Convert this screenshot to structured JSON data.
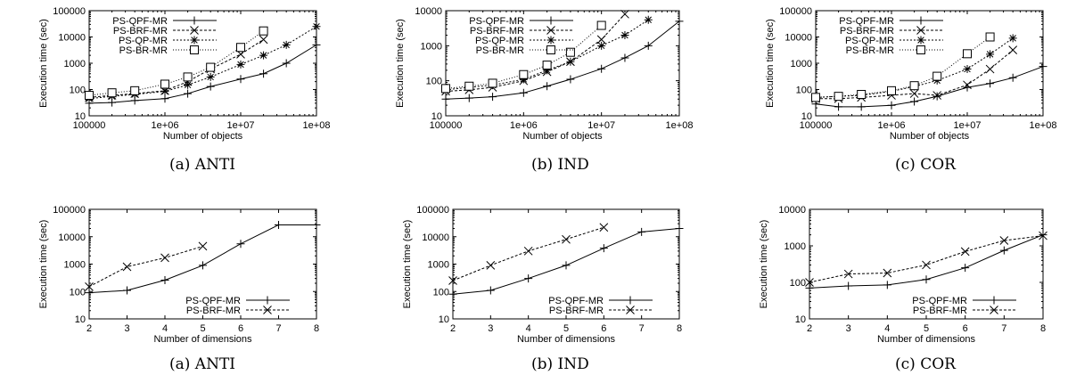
{
  "chart_data": [
    {
      "type": "line",
      "caption": "(a) ANTI",
      "xlabel": "Number of objects",
      "ylabel": "Execution time (sec)",
      "xscale": "log",
      "yscale": "log",
      "xlim": [
        100000,
        100000000
      ],
      "ylim": [
        10,
        100000
      ],
      "xticks": [
        100000,
        1000000,
        10000000,
        100000000
      ],
      "xtick_labels": [
        "100000",
        "1e+06",
        "1e+07",
        "1e+08"
      ],
      "yticks": [
        10,
        100,
        1000,
        10000,
        100000
      ],
      "ytick_labels": [
        "10",
        "100",
        "1000",
        "10000",
        "100000"
      ],
      "legend": "top-left",
      "series": [
        {
          "name": "PS-QPF-MR",
          "x": [
            100000,
            200000,
            400000,
            1000000,
            2000000,
            4000000,
            10000000,
            20000000,
            40000000,
            100000000
          ],
          "values": [
            30,
            32,
            38,
            45,
            70,
            130,
            250,
            400,
            1000,
            5000
          ]
        },
        {
          "name": "PS-BRF-MR",
          "x": [
            100000,
            200000,
            400000,
            1000000,
            2000000,
            4000000,
            10000000,
            20000000
          ],
          "values": [
            50,
            60,
            70,
            90,
            200,
            600,
            2200,
            8000
          ]
        },
        {
          "name": "PS-QP-MR",
          "x": [
            100000,
            200000,
            400000,
            1000000,
            2000000,
            4000000,
            10000000,
            20000000,
            40000000,
            100000000
          ],
          "values": [
            45,
            55,
            65,
            85,
            150,
            300,
            900,
            2000,
            5000,
            25000
          ]
        },
        {
          "name": "PS-BR-MR",
          "x": [
            100000,
            200000,
            400000,
            1000000,
            2000000,
            4000000,
            10000000,
            20000000
          ],
          "values": [
            60,
            75,
            90,
            160,
            300,
            700,
            4000,
            17000
          ]
        }
      ]
    },
    {
      "type": "line",
      "caption": "(b) IND",
      "xlabel": "Number of objects",
      "ylabel": "Execution time (sec)",
      "xscale": "log",
      "yscale": "log",
      "xlim": [
        100000,
        100000000
      ],
      "ylim": [
        10,
        10000
      ],
      "xticks": [
        100000,
        1000000,
        10000000,
        100000000
      ],
      "xtick_labels": [
        "100000",
        "1e+06",
        "1e+07",
        "1e+08"
      ],
      "yticks": [
        10,
        100,
        1000,
        10000
      ],
      "ytick_labels": [
        "10",
        "100",
        "1000",
        "10000"
      ],
      "legend": "top-left",
      "series": [
        {
          "name": "PS-QPF-MR",
          "x": [
            100000,
            200000,
            400000,
            1000000,
            2000000,
            4000000,
            10000000,
            20000000,
            40000000,
            100000000
          ],
          "values": [
            30,
            32,
            35,
            45,
            70,
            110,
            220,
            450,
            1000,
            5000
          ]
        },
        {
          "name": "PS-BRF-MR",
          "x": [
            100000,
            200000,
            400000,
            1000000,
            2000000,
            4000000,
            10000000,
            20000000
          ],
          "values": [
            50,
            55,
            65,
            100,
            180,
            350,
            1500,
            8000
          ]
        },
        {
          "name": "PS-QP-MR",
          "x": [
            100000,
            200000,
            400000,
            1000000,
            2000000,
            4000000,
            10000000,
            20000000,
            40000000
          ],
          "values": [
            55,
            65,
            75,
            110,
            200,
            350,
            1000,
            2000,
            5500
          ]
        },
        {
          "name": "PS-BR-MR",
          "x": [
            100000,
            200000,
            400000,
            1000000,
            2000000,
            4000000,
            10000000
          ],
          "values": [
            60,
            70,
            85,
            150,
            280,
            650,
            3800
          ]
        }
      ]
    },
    {
      "type": "line",
      "caption": "(c) COR",
      "xlabel": "Number of objects",
      "ylabel": "Execution time (sec)",
      "xscale": "log",
      "yscale": "log",
      "xlim": [
        100000,
        100000000
      ],
      "ylim": [
        10,
        100000
      ],
      "xticks": [
        100000,
        1000000,
        10000000,
        100000000
      ],
      "xtick_labels": [
        "100000",
        "1e+06",
        "1e+07",
        "1e+08"
      ],
      "yticks": [
        10,
        100,
        1000,
        10000,
        100000
      ],
      "ytick_labels": [
        "10",
        "100",
        "1000",
        "10000",
        "100000"
      ],
      "legend": "top-left",
      "series": [
        {
          "name": "PS-QPF-MR",
          "x": [
            100000,
            200000,
            400000,
            1000000,
            2000000,
            4000000,
            10000000,
            20000000,
            40000000,
            100000000
          ],
          "values": [
            28,
            22,
            22,
            25,
            35,
            55,
            120,
            170,
            280,
            750
          ]
        },
        {
          "name": "PS-BRF-MR",
          "x": [
            100000,
            200000,
            400000,
            1000000,
            2000000,
            4000000,
            10000000,
            20000000,
            40000000
          ],
          "values": [
            45,
            45,
            50,
            60,
            70,
            60,
            150,
            600,
            3200
          ]
        },
        {
          "name": "PS-QP-MR",
          "x": [
            100000,
            200000,
            400000,
            1000000,
            2000000,
            4000000,
            10000000,
            20000000,
            40000000
          ],
          "values": [
            50,
            55,
            60,
            85,
            130,
            220,
            600,
            2200,
            9000
          ]
        },
        {
          "name": "PS-BR-MR",
          "x": [
            100000,
            200000,
            400000,
            1000000,
            2000000,
            4000000,
            10000000,
            20000000
          ],
          "values": [
            50,
            55,
            65,
            90,
            140,
            320,
            2300,
            10000
          ]
        }
      ]
    },
    {
      "type": "line",
      "caption": "(a) ANTI",
      "xlabel": "Number of dimensions",
      "ylabel": "Execution time (sec)",
      "xscale": "linear",
      "yscale": "log",
      "xlim": [
        2,
        8
      ],
      "ylim": [
        10,
        100000
      ],
      "xticks": [
        2,
        3,
        4,
        5,
        6,
        7,
        8
      ],
      "xtick_labels": [
        "2",
        "3",
        "4",
        "5",
        "6",
        "7",
        "8"
      ],
      "yticks": [
        10,
        100,
        1000,
        10000,
        100000
      ],
      "ytick_labels": [
        "10",
        "100",
        "1000",
        "10000",
        "100000"
      ],
      "legend": "bottom-right",
      "series": [
        {
          "name": "PS-QPF-MR",
          "x": [
            2,
            3,
            4,
            5,
            6,
            7,
            8
          ],
          "values": [
            90,
            110,
            260,
            900,
            5500,
            27000,
            27000
          ]
        },
        {
          "name": "PS-BRF-MR",
          "x": [
            2,
            3,
            4,
            5
          ],
          "values": [
            150,
            800,
            1700,
            4500
          ]
        }
      ]
    },
    {
      "type": "line",
      "caption": "(b) IND",
      "xlabel": "Number of dimensions",
      "ylabel": "Execution time (sec)",
      "xscale": "linear",
      "yscale": "log",
      "xlim": [
        2,
        8
      ],
      "ylim": [
        10,
        100000
      ],
      "xticks": [
        2,
        3,
        4,
        5,
        6,
        7,
        8
      ],
      "xtick_labels": [
        "2",
        "3",
        "4",
        "5",
        "6",
        "7",
        "8"
      ],
      "yticks": [
        10,
        100,
        1000,
        10000,
        100000
      ],
      "ytick_labels": [
        "10",
        "100",
        "1000",
        "10000",
        "100000"
      ],
      "legend": "bottom-right",
      "series": [
        {
          "name": "PS-QPF-MR",
          "x": [
            2,
            3,
            4,
            5,
            6,
            7,
            8
          ],
          "values": [
            80,
            110,
            300,
            900,
            3800,
            15000,
            20000
          ]
        },
        {
          "name": "PS-BRF-MR",
          "x": [
            2,
            3,
            4,
            5,
            6
          ],
          "values": [
            250,
            900,
            3000,
            8000,
            22000
          ]
        }
      ]
    },
    {
      "type": "line",
      "caption": "(c) COR",
      "xlabel": "Number of dimensions",
      "ylabel": "Execution time (sec)",
      "xscale": "linear",
      "yscale": "log",
      "xlim": [
        2,
        8
      ],
      "ylim": [
        10,
        10000
      ],
      "xticks": [
        2,
        3,
        4,
        5,
        6,
        7,
        8
      ],
      "xtick_labels": [
        "2",
        "3",
        "4",
        "5",
        "6",
        "7",
        "8"
      ],
      "yticks": [
        10,
        100,
        1000,
        10000
      ],
      "ytick_labels": [
        "10",
        "100",
        "1000",
        "10000"
      ],
      "legend": "bottom-right",
      "series": [
        {
          "name": "PS-QPF-MR",
          "x": [
            2,
            3,
            4,
            5,
            6,
            7,
            8
          ],
          "values": [
            70,
            80,
            85,
            120,
            250,
            750,
            2000
          ]
        },
        {
          "name": "PS-BRF-MR",
          "x": [
            2,
            3,
            4,
            5,
            6,
            7,
            8
          ],
          "values": [
            100,
            170,
            180,
            300,
            700,
            1400,
            1900
          ]
        }
      ]
    }
  ]
}
